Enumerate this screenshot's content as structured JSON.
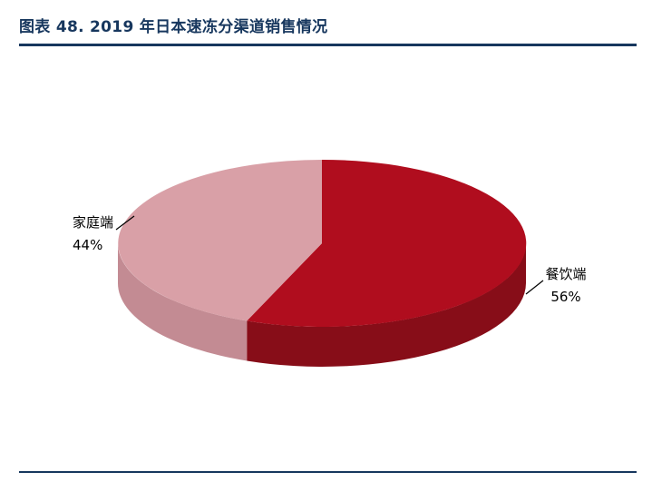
{
  "header": {
    "title": "图表 48. 2019 年日本速冻分渠道销售情况"
  },
  "chart_data": {
    "type": "pie",
    "title": "2019 年日本速冻分渠道销售情况",
    "labels": [
      "餐饮端",
      "家庭端"
    ],
    "values": [
      56,
      44
    ],
    "unit": "%",
    "effect": "3d",
    "direction": "clockwise",
    "start_angle_deg": -90,
    "colors": [
      "#B00D1E",
      "#D9A0A7"
    ],
    "side_colors": [
      "#870D18",
      "#C38B93"
    ],
    "legend_position": "callout-labels",
    "labels_display": [
      {
        "name": "餐饮端",
        "value_text": "56%"
      },
      {
        "name": "家庭端",
        "value_text": "44%"
      }
    ]
  }
}
